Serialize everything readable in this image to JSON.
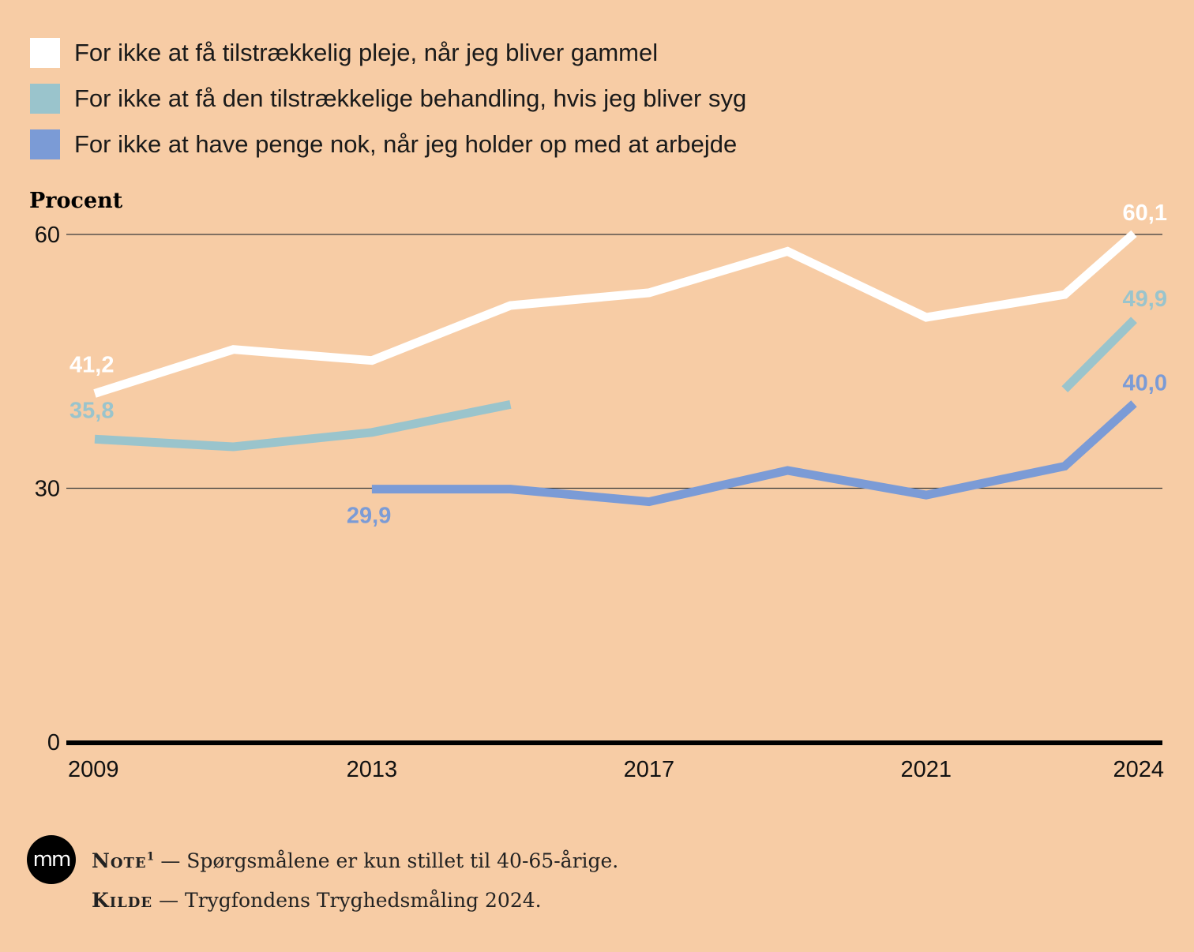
{
  "legend": [
    {
      "label": "For ikke at få tilstrækkelig pleje, når jeg bliver gammel",
      "color": "#ffffff"
    },
    {
      "label": "For ikke at få den tilstrækkelige behandling, hvis jeg bliver syg",
      "color": "#9ac4cc"
    },
    {
      "label": "For ikke at have penge nok, når jeg holder op med at arbejde",
      "color": "#7b9bd6"
    }
  ],
  "chart_data": {
    "type": "line",
    "ylabel": "Procent",
    "ylim": [
      0,
      60
    ],
    "yticks": [
      {
        "value": 0,
        "label": "0"
      },
      {
        "value": 30,
        "label": "30"
      },
      {
        "value": 60,
        "label": "60"
      }
    ],
    "xlim": [
      2009,
      2024
    ],
    "xticks": [
      {
        "value": 2009,
        "label": "2009"
      },
      {
        "value": 2013,
        "label": "2013"
      },
      {
        "value": 2017,
        "label": "2017"
      },
      {
        "value": 2021,
        "label": "2021"
      },
      {
        "value": 2024,
        "label": "2024"
      }
    ],
    "series": [
      {
        "color": "#ffffff",
        "segments": [
          [
            [
              2009,
              41.2
            ],
            [
              2011,
              46.4
            ],
            [
              2013,
              45.1
            ],
            [
              2015,
              51.6
            ],
            [
              2017,
              53.1
            ],
            [
              2019,
              58.0
            ],
            [
              2021,
              50.2
            ],
            [
              2023,
              52.9
            ],
            [
              2024,
              60.1
            ]
          ]
        ],
        "labels": [
          {
            "x": 2009,
            "y": 41.2,
            "text": "41,2"
          },
          {
            "x": 2024,
            "y": 60.1,
            "text": "60,1"
          }
        ]
      },
      {
        "color": "#9ac4cc",
        "segments": [
          [
            [
              2009,
              35.8
            ],
            [
              2011,
              34.9
            ],
            [
              2013,
              36.6
            ],
            [
              2015,
              39.9
            ]
          ],
          [
            [
              2023,
              41.7
            ],
            [
              2024,
              49.9
            ]
          ]
        ],
        "labels": [
          {
            "x": 2009,
            "y": 35.8,
            "text": "35,8"
          },
          {
            "x": 2024,
            "y": 49.9,
            "text": "49,9"
          }
        ]
      },
      {
        "color": "#7b9bd6",
        "segments": [
          [
            [
              2013,
              29.9
            ],
            [
              2015,
              29.9
            ],
            [
              2017,
              28.4
            ],
            [
              2019,
              32.1
            ],
            [
              2021,
              29.2
            ],
            [
              2023,
              32.6
            ],
            [
              2024,
              40.0
            ]
          ]
        ],
        "labels": [
          {
            "x": 2013,
            "y": 29.9,
            "text": "29,9"
          },
          {
            "x": 2024,
            "y": 40.0,
            "text": "40,0"
          }
        ]
      }
    ],
    "grid": true
  },
  "footer": {
    "logo_text": "mm",
    "note_key": "Note",
    "note_sup": "1",
    "note_text": "— Spørgsmålene er kun stillet til 40-65-årige.",
    "source_key": "Kilde",
    "source_text": "— Trygfondens Tryghedsmåling 2024."
  }
}
